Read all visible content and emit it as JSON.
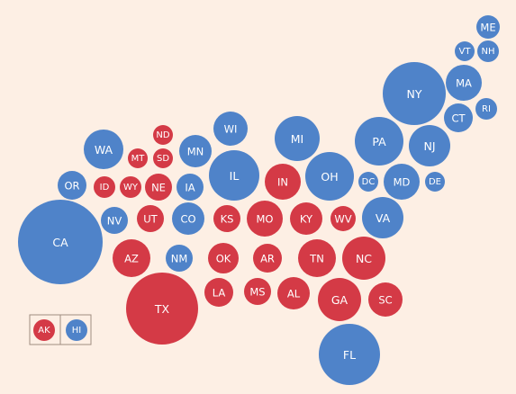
{
  "colors": {
    "rep": "#d43a46",
    "dem": "#4f83c9",
    "background": "#fdefe4"
  },
  "states": [
    {
      "id": "ME",
      "party": "dem"
    },
    {
      "id": "VT",
      "party": "dem"
    },
    {
      "id": "NH",
      "party": "dem"
    },
    {
      "id": "NY",
      "party": "dem"
    },
    {
      "id": "MA",
      "party": "dem"
    },
    {
      "id": "RI",
      "party": "dem"
    },
    {
      "id": "CT",
      "party": "dem"
    },
    {
      "id": "WI",
      "party": "dem"
    },
    {
      "id": "MI",
      "party": "dem"
    },
    {
      "id": "PA",
      "party": "dem"
    },
    {
      "id": "NJ",
      "party": "dem"
    },
    {
      "id": "ND",
      "party": "rep"
    },
    {
      "id": "WA",
      "party": "dem"
    },
    {
      "id": "MT",
      "party": "rep"
    },
    {
      "id": "SD",
      "party": "rep"
    },
    {
      "id": "MN",
      "party": "dem"
    },
    {
      "id": "IL",
      "party": "dem"
    },
    {
      "id": "IN",
      "party": "rep"
    },
    {
      "id": "OH",
      "party": "dem"
    },
    {
      "id": "DC",
      "party": "dem"
    },
    {
      "id": "MD",
      "party": "dem"
    },
    {
      "id": "DE",
      "party": "dem"
    },
    {
      "id": "OR",
      "party": "dem"
    },
    {
      "id": "ID",
      "party": "rep"
    },
    {
      "id": "WY",
      "party": "rep"
    },
    {
      "id": "NE",
      "party": "rep"
    },
    {
      "id": "IA",
      "party": "dem"
    },
    {
      "id": "CA",
      "party": "dem"
    },
    {
      "id": "NV",
      "party": "dem"
    },
    {
      "id": "UT",
      "party": "rep"
    },
    {
      "id": "CO",
      "party": "dem"
    },
    {
      "id": "KS",
      "party": "rep"
    },
    {
      "id": "MO",
      "party": "rep"
    },
    {
      "id": "KY",
      "party": "rep"
    },
    {
      "id": "WV",
      "party": "rep"
    },
    {
      "id": "VA",
      "party": "dem"
    },
    {
      "id": "AZ",
      "party": "rep"
    },
    {
      "id": "NM",
      "party": "dem"
    },
    {
      "id": "OK",
      "party": "rep"
    },
    {
      "id": "AR",
      "party": "rep"
    },
    {
      "id": "TN",
      "party": "rep"
    },
    {
      "id": "NC",
      "party": "rep"
    },
    {
      "id": "TX",
      "party": "rep"
    },
    {
      "id": "LA",
      "party": "rep"
    },
    {
      "id": "MS",
      "party": "rep"
    },
    {
      "id": "AL",
      "party": "rep"
    },
    {
      "id": "GA",
      "party": "rep"
    },
    {
      "id": "SC",
      "party": "rep"
    },
    {
      "id": "FL",
      "party": "dem"
    }
  ],
  "inset": [
    {
      "id": "AK",
      "party": "rep"
    },
    {
      "id": "HI",
      "party": "dem"
    }
  ]
}
